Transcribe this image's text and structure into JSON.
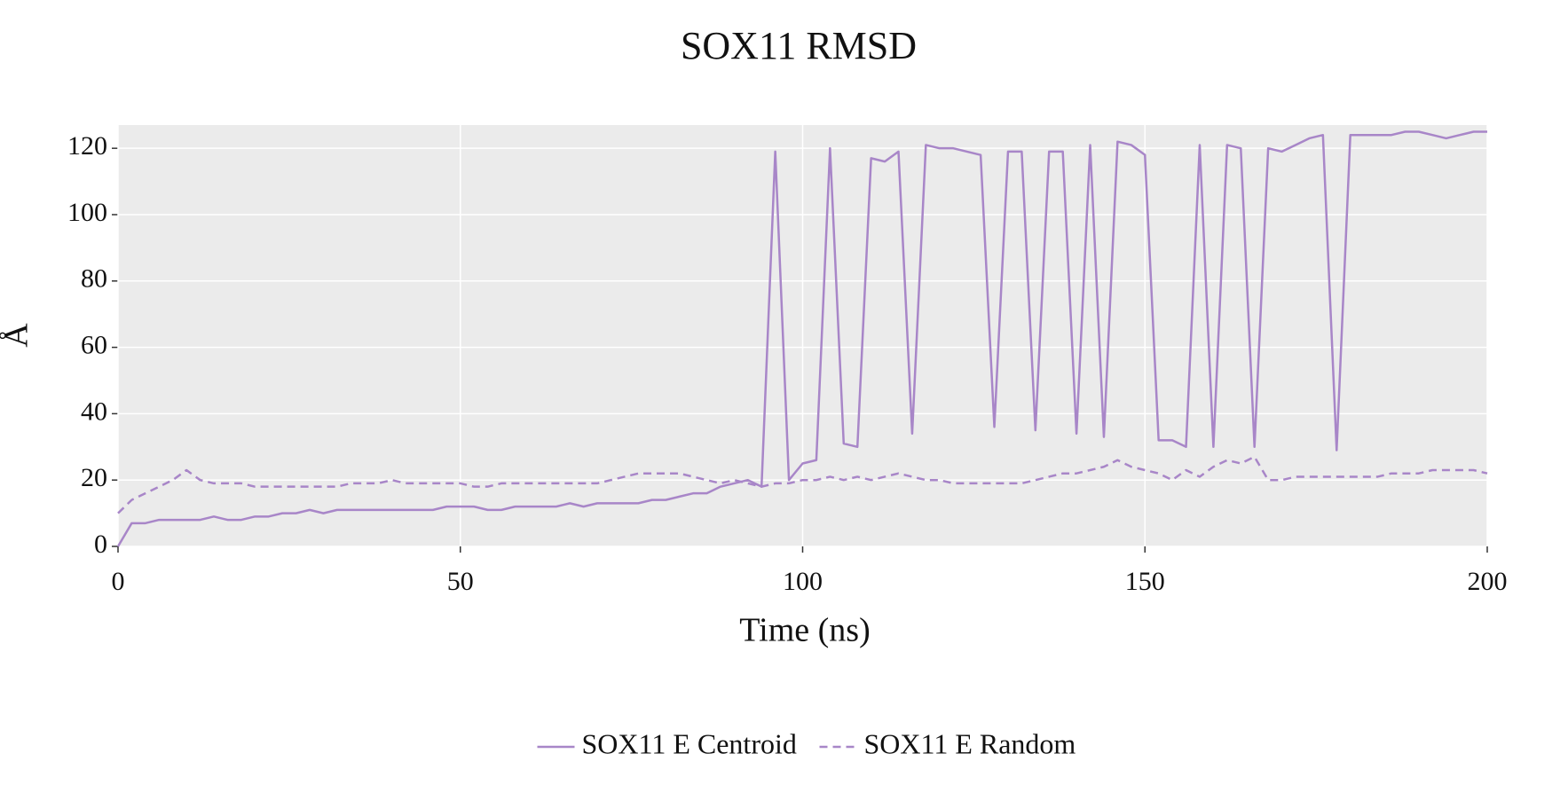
{
  "chart_data": {
    "type": "line",
    "title": "SOX11 RMSD",
    "x_label": "Time (ns)",
    "y_label": "Å",
    "x": [
      0,
      2,
      4,
      6,
      8,
      10,
      12,
      14,
      16,
      18,
      20,
      22,
      24,
      26,
      28,
      30,
      32,
      34,
      36,
      38,
      40,
      42,
      44,
      46,
      48,
      50,
      52,
      54,
      56,
      58,
      60,
      62,
      64,
      66,
      68,
      70,
      72,
      74,
      76,
      78,
      80,
      82,
      84,
      86,
      88,
      90,
      92,
      94,
      96,
      98,
      100,
      102,
      104,
      106,
      108,
      110,
      112,
      114,
      116,
      118,
      120,
      122,
      124,
      126,
      128,
      130,
      132,
      134,
      136,
      138,
      140,
      142,
      144,
      146,
      148,
      150,
      152,
      154,
      156,
      158,
      160,
      162,
      164,
      166,
      168,
      170,
      172,
      174,
      176,
      178,
      180,
      182,
      184,
      186,
      188,
      190,
      192,
      194,
      196,
      198,
      200
    ],
    "series": [
      {
        "name": "SOX11 E Centroid",
        "color": "#a886c8",
        "line_style": "solid",
        "values": [
          0,
          7,
          7,
          8,
          8,
          8,
          8,
          9,
          8,
          8,
          9,
          9,
          10,
          10,
          11,
          10,
          11,
          11,
          11,
          11,
          11,
          11,
          11,
          11,
          12,
          12,
          12,
          11,
          11,
          12,
          12,
          12,
          12,
          13,
          12,
          13,
          13,
          13,
          13,
          14,
          14,
          15,
          16,
          16,
          18,
          19,
          20,
          18,
          119,
          20,
          25,
          26,
          120,
          31,
          30,
          117,
          116,
          119,
          34,
          121,
          120,
          120,
          119,
          118,
          36,
          119,
          119,
          35,
          119,
          119,
          34,
          121,
          33,
          122,
          121,
          118,
          32,
          32,
          30,
          121,
          30,
          121,
          120,
          30,
          120,
          119,
          121,
          123,
          124,
          29,
          124,
          124,
          124,
          124,
          125,
          125,
          124,
          123,
          124,
          125,
          125
        ]
      },
      {
        "name": "SOX11 E Random",
        "color": "#a886c8",
        "line_style": "dashed",
        "values": [
          10,
          14,
          16,
          18,
          20,
          23,
          20,
          19,
          19,
          19,
          18,
          18,
          18,
          18,
          18,
          18,
          18,
          19,
          19,
          19,
          20,
          19,
          19,
          19,
          19,
          19,
          18,
          18,
          19,
          19,
          19,
          19,
          19,
          19,
          19,
          19,
          20,
          21,
          22,
          22,
          22,
          22,
          21,
          20,
          19,
          20,
          19,
          18,
          19,
          19,
          20,
          20,
          21,
          20,
          21,
          20,
          21,
          22,
          21,
          20,
          20,
          19,
          19,
          19,
          19,
          19,
          19,
          20,
          21,
          22,
          22,
          23,
          24,
          26,
          24,
          23,
          22,
          20,
          23,
          21,
          24,
          26,
          25,
          27,
          20,
          20,
          21,
          21,
          21,
          21,
          21,
          21,
          21,
          22,
          22,
          22,
          23,
          23,
          23,
          23,
          22
        ]
      }
    ],
    "xlim": [
      0,
      200
    ],
    "ylim": [
      0,
      127
    ],
    "xticks": [
      0,
      50,
      100,
      150,
      200
    ],
    "yticks": [
      0,
      20,
      40,
      60,
      80,
      100,
      120
    ],
    "grid": true,
    "legend_position": "bottom"
  }
}
